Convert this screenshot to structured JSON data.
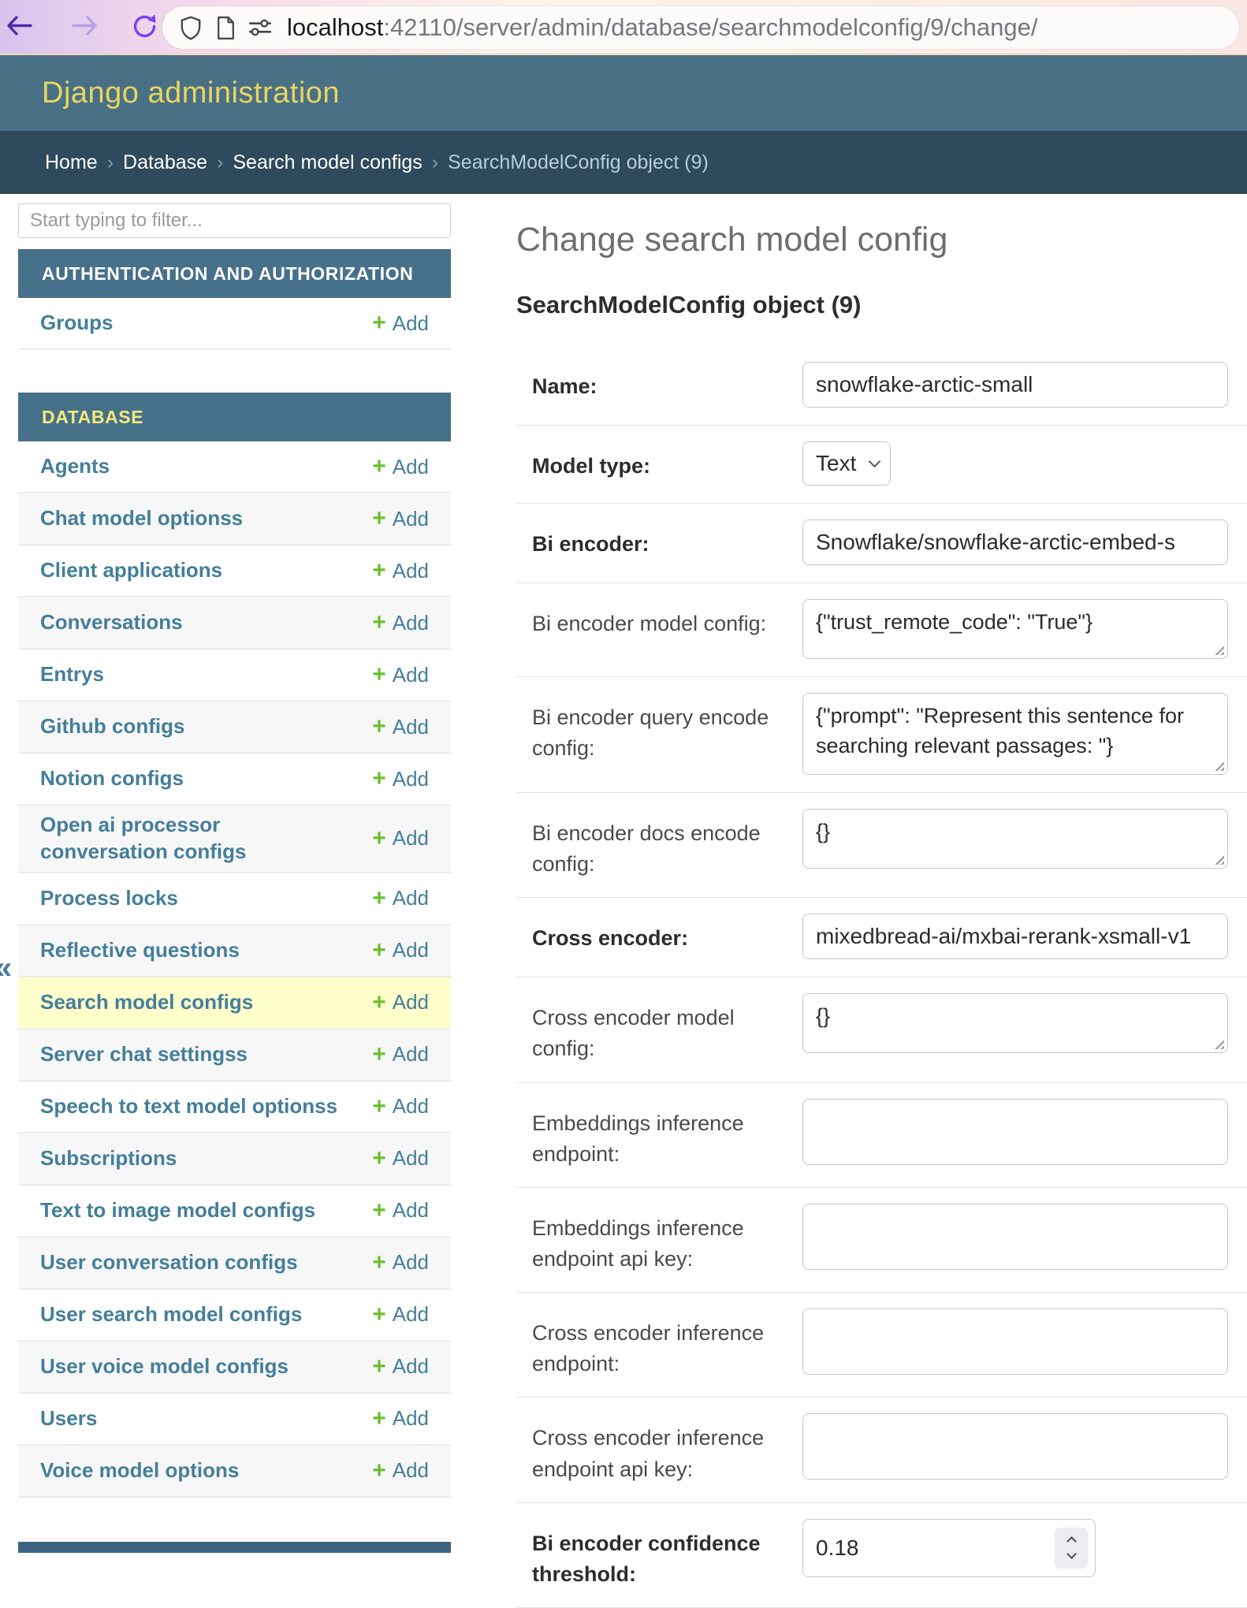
{
  "browser": {
    "url_host": "localhost",
    "url_path": ":42110/server/admin/database/searchmodelconfig/9/change/"
  },
  "header": {
    "title": "Django administration"
  },
  "breadcrumbs": {
    "items": [
      "Home",
      "Database",
      "Search model configs"
    ],
    "current": "SearchModelConfig object (9)",
    "separator": "›"
  },
  "sidebar": {
    "filter_placeholder": "Start typing to filter...",
    "toggle_glyph": "«",
    "add_plus": "+",
    "sections": [
      {
        "label": "AUTHENTICATION AND AUTHORIZATION",
        "highlighted": false,
        "items": [
          {
            "label": "Groups",
            "add_label": "Add"
          }
        ]
      },
      {
        "label": "DATABASE",
        "highlighted": true,
        "items": [
          {
            "label": "Agents",
            "add_label": "Add"
          },
          {
            "label": "Chat model optionss",
            "add_label": "Add"
          },
          {
            "label": "Client applications",
            "add_label": "Add"
          },
          {
            "label": "Conversations",
            "add_label": "Add"
          },
          {
            "label": "Entrys",
            "add_label": "Add"
          },
          {
            "label": "Github configs",
            "add_label": "Add"
          },
          {
            "label": "Notion configs",
            "add_label": "Add"
          },
          {
            "label": "Open ai processor conversation configs",
            "add_label": "Add"
          },
          {
            "label": "Process locks",
            "add_label": "Add"
          },
          {
            "label": "Reflective questions",
            "add_label": "Add"
          },
          {
            "label": "Search model configs",
            "add_label": "Add",
            "selected": true
          },
          {
            "label": "Server chat settingss",
            "add_label": "Add"
          },
          {
            "label": "Speech to text model optionss",
            "add_label": "Add"
          },
          {
            "label": "Subscriptions",
            "add_label": "Add"
          },
          {
            "label": "Text to image model configs",
            "add_label": "Add"
          },
          {
            "label": "User conversation configs",
            "add_label": "Add"
          },
          {
            "label": "User search model configs",
            "add_label": "Add"
          },
          {
            "label": "User voice model configs",
            "add_label": "Add"
          },
          {
            "label": "Users",
            "add_label": "Add"
          },
          {
            "label": "Voice model options",
            "add_label": "Add"
          }
        ]
      }
    ]
  },
  "main": {
    "page_title": "Change search model config",
    "object_title": "SearchModelConfig object (9)",
    "fields": [
      {
        "label": "Name:",
        "required": true,
        "control": "text",
        "value": "snowflake-arctic-small"
      },
      {
        "label": "Model type:",
        "required": true,
        "control": "select",
        "value": "Text"
      },
      {
        "label": "Bi encoder:",
        "required": true,
        "control": "text",
        "value": "Snowflake/snowflake-arctic-embed-s"
      },
      {
        "label": "Bi encoder model config:",
        "required": false,
        "control": "textarea",
        "rows": 1,
        "value": "{\"trust_remote_code\": \"True\"}"
      },
      {
        "label": "Bi encoder query encode config:",
        "required": false,
        "control": "textarea",
        "rows": 2,
        "value": "{\"prompt\": \"Represent this sentence for searching relevant passages: \"}"
      },
      {
        "label": "Bi encoder docs encode config:",
        "required": false,
        "control": "textarea",
        "rows": 1,
        "value": "{}"
      },
      {
        "label": "Cross encoder:",
        "required": true,
        "control": "text",
        "value": "mixedbread-ai/mxbai-rerank-xsmall-v1"
      },
      {
        "label": "Cross encoder model config:",
        "required": false,
        "control": "textarea",
        "rows": 1,
        "value": "{}"
      },
      {
        "label": "Embeddings inference endpoint:",
        "required": false,
        "control": "empty",
        "value": ""
      },
      {
        "label": "Embeddings inference endpoint api key:",
        "required": false,
        "control": "empty",
        "value": ""
      },
      {
        "label": "Cross encoder inference endpoint:",
        "required": false,
        "control": "empty",
        "value": ""
      },
      {
        "label": "Cross encoder inference endpoint api key:",
        "required": false,
        "control": "empty",
        "value": ""
      },
      {
        "label": "Bi encoder confidence threshold:",
        "required": true,
        "control": "number",
        "value": "0.18"
      }
    ]
  },
  "colors": {
    "header_bg": "#4a7086",
    "breadcrumbs_bg": "#2e4a5c",
    "section_bg": "#47708a",
    "header_title": "#e8d65f",
    "db_caption": "#f3e97c",
    "link": "#447e9b",
    "plus_green": "#6bbf32",
    "selected_row": "#ffffcc"
  }
}
